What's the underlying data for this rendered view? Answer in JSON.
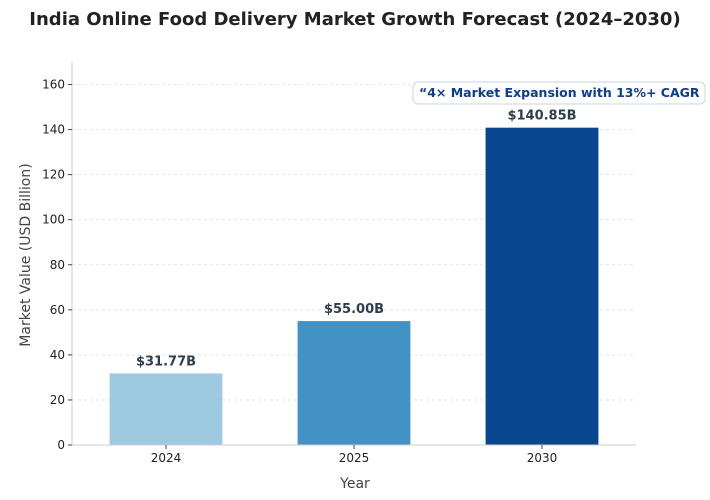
{
  "chart_data": {
    "type": "bar",
    "title": "India Online Food Delivery Market Growth Forecast (2024–2030)",
    "xlabel": "Year",
    "ylabel": "Market Value (USD Billion)",
    "categories": [
      "2024",
      "2025",
      "2030"
    ],
    "values": [
      31.77,
      55.0,
      140.85
    ],
    "data_labels": [
      "$31.77B",
      "$55.00B",
      "$140.85B"
    ],
    "bar_colors": [
      "#9ecae1",
      "#4292c6",
      "#08468f"
    ],
    "ylim": [
      0,
      170
    ],
    "yticks": [
      0,
      20,
      40,
      60,
      80,
      100,
      120,
      140,
      160
    ],
    "grid": true,
    "annotation": "“4× Market Expansion with 13%+ CAGR",
    "annotation_color": "#0b3d91"
  }
}
